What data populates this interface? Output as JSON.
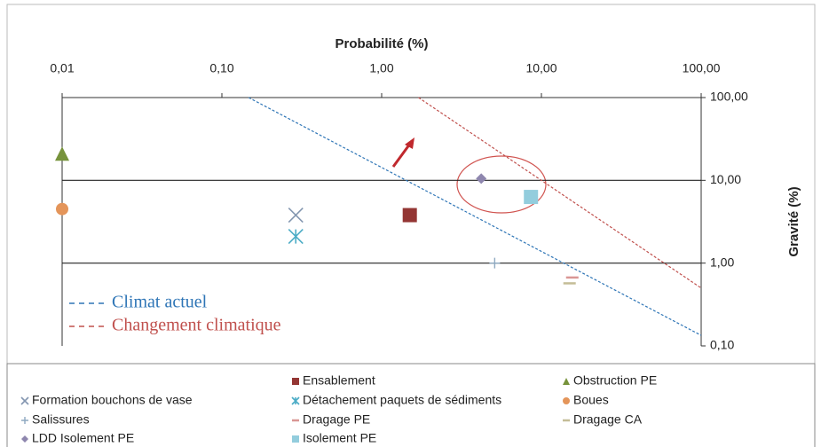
{
  "chart_data": {
    "type": "scatter",
    "xlabel": "Probabilité (%)",
    "ylabel": "Gravité (%)",
    "xscale": "log",
    "yscale": "log",
    "xlim": [
      0.01,
      100
    ],
    "ylim": [
      0.1,
      100
    ],
    "xticks": [
      {
        "value": 0.01,
        "label": "0,01"
      },
      {
        "value": 0.1,
        "label": "0,10"
      },
      {
        "value": 1,
        "label": "1,00"
      },
      {
        "value": 10,
        "label": "10,00"
      },
      {
        "value": 100,
        "label": "100,00"
      }
    ],
    "yticks": [
      {
        "value": 0.1,
        "label": "0,10"
      },
      {
        "value": 1,
        "label": "1,00"
      },
      {
        "value": 10,
        "label": "10,00"
      },
      {
        "value": 100,
        "label": "100,00"
      }
    ],
    "hlines": [
      1,
      10
    ],
    "legend": "bottom",
    "series": [
      {
        "name": "Ensablement",
        "color": "#943634",
        "marker": "square",
        "x": [
          1.5
        ],
        "values": [
          3.8
        ]
      },
      {
        "name": "Obstruction PE",
        "color": "#77933c",
        "marker": "triangle",
        "x": [
          0.01
        ],
        "values": [
          21
        ]
      },
      {
        "name": "Formation bouchons de vase",
        "color": "#8497b0",
        "marker": "x",
        "x": [
          0.29
        ],
        "values": [
          3.8
        ]
      },
      {
        "name": "Détachement paquets de sédiments",
        "color": "#4bacc6",
        "marker": "asterisk",
        "x": [
          0.29
        ],
        "values": [
          2.1
        ]
      },
      {
        "name": "Boues",
        "color": "#e4955a",
        "marker": "circle",
        "x": [
          0.01
        ],
        "values": [
          4.5
        ]
      },
      {
        "name": "Salissures",
        "color": "#8ea9c1",
        "marker": "plus",
        "x": [
          5.1
        ],
        "values": [
          1
        ]
      },
      {
        "name": "Dragage PE",
        "color": "#d99694",
        "marker": "dash",
        "x": [
          15.6
        ],
        "values": [
          0.67
        ]
      },
      {
        "name": "Dragage CA",
        "color": "#c4bd97",
        "marker": "dash",
        "x": [
          15
        ],
        "values": [
          0.57
        ]
      },
      {
        "name": "LDD Isolement PE",
        "color": "#8e86ae",
        "marker": "diamond",
        "x": [
          4.2
        ],
        "values": [
          10.5
        ]
      },
      {
        "name": "Isolement PE",
        "color": "#93cddd",
        "marker": "square",
        "x": [
          8.6
        ],
        "values": [
          6.3
        ]
      }
    ],
    "lines": [
      {
        "name": "Climat actuel",
        "color": "#2e75b6",
        "x": [
          0.147,
          100
        ],
        "values": [
          100,
          0.134
        ]
      },
      {
        "name": "Changement climatique",
        "color": "#c0504d",
        "x": [
          1.7,
          100
        ],
        "values": [
          100,
          0.5
        ]
      }
    ]
  }
}
